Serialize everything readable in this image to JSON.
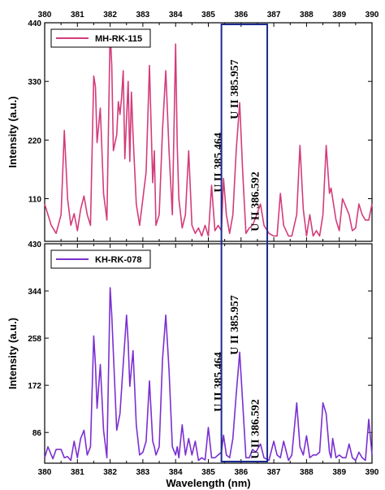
{
  "chart_data": [
    {
      "type": "line",
      "legend": "MH-RK-115",
      "color": "#d33c7a",
      "xlabel": "Wavelength (nm)",
      "ylabel": "Intensity (a.u.)",
      "xlim": [
        380,
        390
      ],
      "ylim": [
        30,
        440
      ],
      "xticks": [
        380,
        381,
        382,
        383,
        384,
        385,
        386,
        387,
        388,
        389,
        390
      ],
      "yticks": [
        110,
        220,
        330,
        440
      ],
      "annotations": [
        "U II 385.464",
        "U II 385.957",
        "U II 386.592"
      ],
      "highlight_range": [
        385.4,
        386.8
      ],
      "x": [
        380.0,
        380.2,
        380.35,
        380.5,
        380.6,
        380.7,
        380.8,
        380.9,
        381.0,
        381.1,
        381.2,
        381.3,
        381.4,
        381.5,
        381.55,
        381.6,
        381.7,
        381.8,
        381.9,
        382.0,
        382.05,
        382.1,
        382.2,
        382.25,
        382.3,
        382.35,
        382.4,
        382.45,
        382.5,
        382.55,
        382.6,
        382.65,
        382.7,
        382.8,
        382.9,
        383.0,
        383.1,
        383.2,
        383.3,
        383.35,
        383.4,
        383.5,
        383.6,
        383.7,
        383.8,
        383.9,
        384.0,
        384.05,
        384.1,
        384.2,
        384.3,
        384.4,
        384.5,
        384.6,
        384.7,
        384.8,
        384.9,
        385.0,
        385.1,
        385.2,
        385.3,
        385.4,
        385.464,
        385.55,
        385.65,
        385.75,
        385.85,
        385.957,
        386.05,
        386.15,
        386.25,
        386.35,
        386.45,
        386.592,
        386.7,
        386.85,
        387.0,
        387.1,
        387.2,
        387.3,
        387.45,
        387.55,
        387.7,
        387.8,
        387.9,
        388.0,
        388.1,
        388.2,
        388.3,
        388.4,
        388.5,
        388.6,
        388.7,
        388.75,
        388.8,
        388.9,
        389.0,
        389.1,
        389.2,
        389.3,
        389.4,
        389.5,
        389.6,
        389.7,
        389.8,
        389.9,
        390.0
      ],
      "y": [
        100,
        60,
        45,
        80,
        238,
        110,
        60,
        82,
        50,
        90,
        115,
        80,
        60,
        340,
        320,
        215,
        280,
        120,
        70,
        425,
        360,
        200,
        230,
        292,
        268,
        300,
        350,
        185,
        260,
        330,
        180,
        310,
        230,
        100,
        60,
        110,
        160,
        360,
        140,
        200,
        60,
        80,
        240,
        350,
        200,
        80,
        400,
        210,
        110,
        55,
        80,
        200,
        60,
        45,
        55,
        40,
        60,
        40,
        135,
        50,
        60,
        50,
        148,
        80,
        45,
        80,
        200,
        290,
        160,
        45,
        55,
        60,
        75,
        100,
        60,
        45,
        40,
        40,
        120,
        60,
        40,
        40,
        80,
        210,
        90,
        40,
        80,
        40,
        50,
        40,
        80,
        210,
        120,
        130,
        110,
        70,
        50,
        110,
        95,
        80,
        50,
        55,
        100,
        80,
        70,
        70,
        100
      ]
    },
    {
      "type": "line",
      "legend": "KH-RK-078",
      "color": "#7a2fd1",
      "xlabel": "Wavelength (nm)",
      "ylabel": "Intensity (a.u.)",
      "xlim": [
        380,
        390
      ],
      "ylim": [
        30,
        430
      ],
      "xticks": [
        380,
        381,
        382,
        383,
        384,
        385,
        386,
        387,
        388,
        389,
        390
      ],
      "yticks": [
        86,
        172,
        258,
        344,
        430
      ],
      "annotations": [
        "U II 385.464",
        "U II 385.957",
        "U II 386.592"
      ],
      "highlight_range": [
        385.4,
        386.8
      ],
      "x": [
        380.0,
        380.1,
        380.25,
        380.35,
        380.5,
        380.6,
        380.7,
        380.8,
        380.9,
        381.0,
        381.1,
        381.2,
        381.3,
        381.4,
        381.5,
        381.55,
        381.6,
        381.7,
        381.8,
        381.9,
        382.0,
        382.05,
        382.1,
        382.2,
        382.3,
        382.4,
        382.5,
        382.55,
        382.6,
        382.7,
        382.8,
        382.9,
        383.0,
        383.1,
        383.2,
        383.3,
        383.35,
        383.4,
        383.5,
        383.6,
        383.7,
        383.8,
        383.9,
        384.0,
        384.05,
        384.1,
        384.2,
        384.3,
        384.4,
        384.5,
        384.6,
        384.7,
        384.8,
        384.9,
        385.0,
        385.1,
        385.2,
        385.3,
        385.4,
        385.464,
        385.55,
        385.65,
        385.75,
        385.85,
        385.957,
        386.05,
        386.15,
        386.25,
        386.35,
        386.45,
        386.592,
        386.7,
        386.85,
        387.0,
        387.1,
        387.2,
        387.3,
        387.45,
        387.55,
        387.7,
        387.8,
        387.9,
        388.0,
        388.1,
        388.2,
        388.3,
        388.4,
        388.5,
        388.6,
        388.7,
        388.75,
        388.8,
        388.9,
        389.0,
        389.1,
        389.2,
        389.3,
        389.4,
        389.5,
        389.6,
        389.7,
        389.8,
        389.9,
        390.0
      ],
      "y": [
        40,
        60,
        38,
        55,
        55,
        40,
        42,
        35,
        70,
        40,
        75,
        90,
        45,
        60,
        262,
        210,
        130,
        210,
        90,
        40,
        350,
        300,
        230,
        90,
        120,
        210,
        300,
        250,
        170,
        235,
        100,
        45,
        50,
        70,
        180,
        70,
        60,
        45,
        60,
        220,
        300,
        200,
        60,
        45,
        60,
        40,
        100,
        45,
        75,
        45,
        70,
        35,
        40,
        36,
        95,
        40,
        40,
        45,
        50,
        81,
        45,
        40,
        75,
        155,
        232,
        140,
        40,
        40,
        55,
        50,
        65,
        40,
        35,
        70,
        45,
        40,
        70,
        35,
        45,
        140,
        60,
        45,
        80,
        40,
        45,
        45,
        50,
        140,
        120,
        50,
        40,
        75,
        40,
        45,
        40,
        40,
        65,
        40,
        35,
        50,
        40,
        35,
        110,
        45
      ]
    }
  ]
}
